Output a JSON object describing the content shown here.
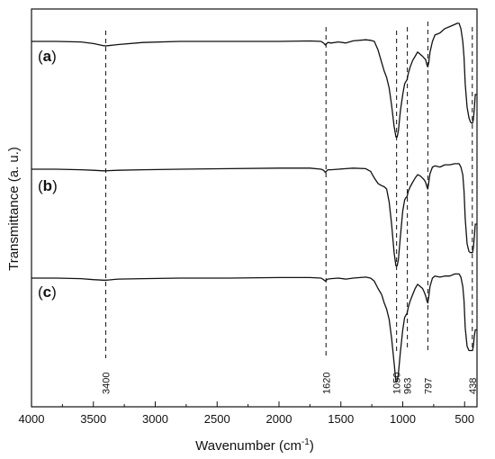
{
  "chart_data": {
    "type": "line",
    "xlabel": "Wavenumber (cm",
    "xlabel_sup": "-1",
    "xlabel_close": ")",
    "ylabel": "Transmittance (a. u.)",
    "xlim": [
      4000,
      400
    ],
    "x_reversed": true,
    "x_ticks": [
      4000,
      3500,
      3000,
      2500,
      2000,
      1500,
      1000,
      500
    ],
    "y_ticks_shown": false,
    "grid": false,
    "peak_markers": [
      3400,
      1620,
      1050,
      963,
      797,
      438
    ],
    "series": [
      {
        "label_open": "(",
        "label_letter": "a",
        "label_close": ")",
        "x": [
          4000,
          3800,
          3600,
          3500,
          3420,
          3400,
          3380,
          3300,
          3100,
          2800,
          2400,
          2000,
          1750,
          1660,
          1640,
          1625,
          1618,
          1605,
          1580,
          1520,
          1460,
          1400,
          1300,
          1260,
          1230,
          1200,
          1170,
          1150,
          1130,
          1110,
          1090,
          1070,
          1055,
          1045,
          1035,
          1020,
          1000,
          985,
          975,
          965,
          955,
          940,
          920,
          900,
          880,
          860,
          840,
          825,
          815,
          805,
          798,
          790,
          780,
          760,
          740,
          700,
          660,
          620,
          580,
          560,
          545,
          530,
          515,
          505,
          495,
          480,
          465,
          452,
          442,
          436,
          430,
          422,
          414,
          400
        ],
        "y": [
          0.0,
          0.0,
          -0.5,
          -2.0,
          -4.0,
          -4.2,
          -4.0,
          -3.0,
          -1.0,
          0.0,
          0.0,
          0.0,
          0.4,
          0.0,
          -1.5,
          -3.5,
          -2.5,
          -1.0,
          -1.5,
          -0.5,
          -1.5,
          0.5,
          1.5,
          1.0,
          0.0,
          -8.0,
          -20.0,
          -28.0,
          -34.0,
          -44.0,
          -60.0,
          -80.0,
          -90.0,
          -90.0,
          -84.0,
          -66.0,
          -50.0,
          -40.0,
          -38.0,
          -36.0,
          -30.0,
          -24.0,
          -18.0,
          -14.0,
          -10.0,
          -12.0,
          -14.0,
          -16.0,
          -17.0,
          -22.0,
          -24.0,
          -20.0,
          -10.0,
          0.0,
          6.0,
          8.0,
          12.0,
          14.0,
          16.0,
          17.0,
          17.0,
          12.0,
          0.0,
          -15.0,
          -40.0,
          -62.0,
          -72.0,
          -76.0,
          -77.0,
          -77.0,
          -74.0,
          -64.0,
          -50.0,
          -50.0
        ]
      },
      {
        "label_open": "(",
        "label_letter": "b",
        "label_close": ")",
        "x": [
          4000,
          3800,
          3600,
          3500,
          3420,
          3400,
          3380,
          3300,
          3100,
          2800,
          2400,
          2000,
          1750,
          1660,
          1640,
          1625,
          1618,
          1605,
          1580,
          1520,
          1460,
          1400,
          1300,
          1260,
          1230,
          1200,
          1170,
          1150,
          1130,
          1110,
          1090,
          1070,
          1055,
          1045,
          1035,
          1020,
          1000,
          985,
          975,
          965,
          955,
          940,
          920,
          900,
          880,
          860,
          840,
          825,
          815,
          805,
          798,
          790,
          780,
          760,
          740,
          700,
          660,
          620,
          580,
          560,
          545,
          530,
          515,
          505,
          495,
          480,
          465,
          452,
          442,
          436,
          430,
          422,
          414,
          400
        ],
        "y": [
          0.0,
          0.0,
          -0.5,
          -1.0,
          -1.5,
          -1.5,
          -1.3,
          -1.0,
          -0.5,
          0.0,
          0.5,
          1.0,
          1.0,
          0.0,
          -1.0,
          -3.0,
          -2.0,
          -0.5,
          -0.5,
          0.0,
          0.5,
          1.0,
          0.5,
          -2.0,
          -8.0,
          -13.0,
          -15.0,
          -16.0,
          -18.0,
          -30.0,
          -50.0,
          -76.0,
          -88.0,
          -88.0,
          -82.0,
          -62.0,
          -38.0,
          -28.0,
          -26.0,
          -25.0,
          -20.0,
          -16.0,
          -12.0,
          -8.0,
          -5.0,
          -6.0,
          -8.0,
          -10.0,
          -12.0,
          -16.0,
          -18.0,
          -12.0,
          -4.0,
          2.0,
          3.0,
          2.0,
          4.0,
          4.0,
          5.0,
          5.0,
          5.0,
          2.0,
          -5.0,
          -20.0,
          -45.0,
          -68.0,
          -75.0,
          -76.0,
          -76.0,
          -76.0,
          -72.0,
          -62.0,
          -50.0,
          -50.0
        ]
      },
      {
        "label_open": "(",
        "label_letter": "c",
        "label_close": ")",
        "x": [
          4000,
          3800,
          3600,
          3500,
          3420,
          3400,
          3380,
          3300,
          3100,
          2800,
          2400,
          2000,
          1750,
          1660,
          1640,
          1625,
          1618,
          1605,
          1580,
          1520,
          1460,
          1400,
          1300,
          1260,
          1230,
          1200,
          1170,
          1150,
          1130,
          1110,
          1090,
          1070,
          1055,
          1045,
          1035,
          1020,
          1000,
          985,
          975,
          965,
          955,
          940,
          920,
          900,
          880,
          860,
          840,
          825,
          815,
          805,
          798,
          790,
          780,
          760,
          740,
          700,
          660,
          620,
          580,
          560,
          545,
          530,
          515,
          505,
          495,
          480,
          465,
          452,
          442,
          436,
          430,
          422,
          414,
          400
        ],
        "y": [
          0.0,
          0.0,
          -0.5,
          -1.5,
          -2.0,
          -2.0,
          -1.8,
          -1.0,
          -0.5,
          0.0,
          0.0,
          0.5,
          0.5,
          0.0,
          -1.5,
          -3.0,
          -2.0,
          -1.0,
          -0.5,
          0.0,
          -1.0,
          0.0,
          1.0,
          0.0,
          -3.0,
          -10.0,
          -16.0,
          -24.0,
          -30.0,
          -40.0,
          -58.0,
          -82.0,
          -100.0,
          -100.0,
          -92.0,
          -72.0,
          -50.0,
          -38.0,
          -36.0,
          -34.0,
          -28.0,
          -22.0,
          -16.0,
          -10.0,
          -6.0,
          -8.0,
          -10.0,
          -14.0,
          -17.0,
          -22.0,
          -24.0,
          -18.0,
          -8.0,
          0.0,
          2.0,
          1.0,
          2.0,
          2.0,
          4.0,
          4.0,
          4.0,
          1.0,
          -8.0,
          -22.0,
          -48.0,
          -66.0,
          -70.0,
          -70.0,
          -70.0,
          -70.0,
          -66.0,
          -56.0,
          -50.0,
          -50.0
        ]
      }
    ]
  }
}
